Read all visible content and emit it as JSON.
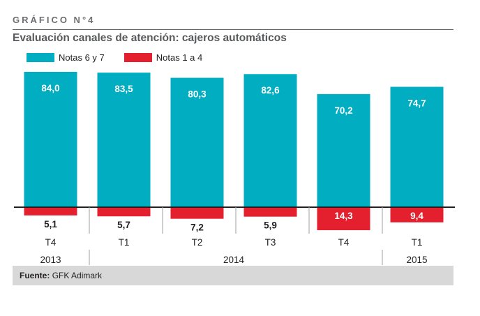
{
  "header": {
    "figure_label": "GRÁFICO N°4",
    "title": "Evaluación canales de atención: cajeros automáticos"
  },
  "colors": {
    "positive": "#00adc1",
    "negative": "#e4202f",
    "footer_bg": "#d8d8d8"
  },
  "chart_data": {
    "type": "bar",
    "title": "Evaluación canales de atención: cajeros automáticos",
    "categories": [
      "T4",
      "T1",
      "T2",
      "T3",
      "T4",
      "T1"
    ],
    "year_groups": [
      {
        "label": "2013",
        "span": 1
      },
      {
        "label": "2014",
        "span": 4
      },
      {
        "label": "2015",
        "span": 1
      }
    ],
    "series": [
      {
        "name": "Notas 6 y 7",
        "values": [
          84.0,
          83.5,
          80.3,
          82.6,
          70.2,
          74.7
        ],
        "labels": [
          "84,0",
          "83,5",
          "80,3",
          "82,6",
          "70,2",
          "74,7"
        ],
        "direction": "up"
      },
      {
        "name": "Notas 1 a 4",
        "values": [
          5.1,
          5.7,
          7.2,
          5.9,
          14.3,
          9.4
        ],
        "labels": [
          "5,1",
          "5,7",
          "7,2",
          "5,9",
          "14,3",
          "9,4"
        ],
        "direction": "down"
      }
    ],
    "legend_position": "top-left"
  },
  "footer": {
    "source_label": "Fuente:",
    "source_value": "GFK Adimark"
  }
}
